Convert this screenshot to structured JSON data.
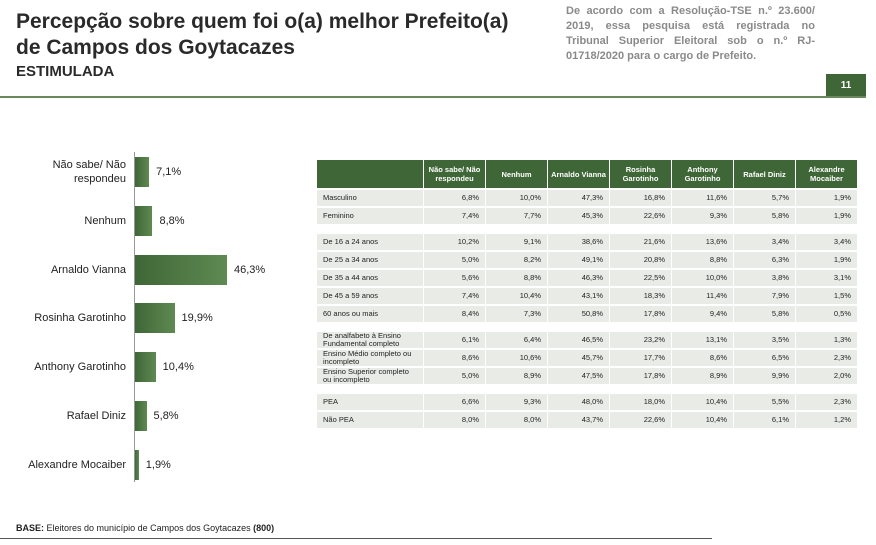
{
  "header": {
    "title_lines": [
      "Percepção sobre quem foi o(a) melhor Prefeito(a)",
      "de Campos dos Goytacazes"
    ],
    "subtitle": "ESTIMULADA",
    "note": "De acordo com a Resolução-TSE n.º 23.600/ 2019, essa pesquisa está registrada no Tribunal Superior Eleitoral sob o n.º RJ-01718/2020 para o cargo de Prefeito.",
    "page_number": "11"
  },
  "chart_data": {
    "type": "bar",
    "orientation": "horizontal",
    "color": "#3f6637",
    "categories": [
      "Não sabe/ Não respondeu",
      "Nenhum",
      "Arnaldo Vianna",
      "Rosinha Garotinho",
      "Anthony Garotinho",
      "Rafael Diniz",
      "Alexandre Mocaiber"
    ],
    "values": [
      7.1,
      8.8,
      46.3,
      19.9,
      10.4,
      5.8,
      1.9
    ],
    "value_labels": [
      "7,1%",
      "8,8%",
      "46,3%",
      "19,9%",
      "10,4%",
      "5,8%",
      "1,9%"
    ]
  },
  "table": {
    "columns": [
      "Não sabe/ Não respondeu",
      "Nenhum",
      "Arnaldo Vianna",
      "Rosinha Garotinho",
      "Anthony Garotinho",
      "Rafael Diniz",
      "Alexandre Mocaiber"
    ],
    "groups": [
      [
        [
          "Masculino",
          "6,8%",
          "10,0%",
          "47,3%",
          "16,8%",
          "11,6%",
          "5,7%",
          "1,9%"
        ],
        [
          "Feminino",
          "7,4%",
          "7,7%",
          "45,3%",
          "22,6%",
          "9,3%",
          "5,8%",
          "1,9%"
        ]
      ],
      [
        [
          "De 16 a 24 anos",
          "10,2%",
          "9,1%",
          "38,6%",
          "21,6%",
          "13,6%",
          "3,4%",
          "3,4%"
        ],
        [
          "De 25 a 34 anos",
          "5,0%",
          "8,2%",
          "49,1%",
          "20,8%",
          "8,8%",
          "6,3%",
          "1,9%"
        ],
        [
          "De 35 a 44 anos",
          "5,6%",
          "8,8%",
          "46,3%",
          "22,5%",
          "10,0%",
          "3,8%",
          "3,1%"
        ],
        [
          "De 45 a 59 anos",
          "7,4%",
          "10,4%",
          "43,1%",
          "18,3%",
          "11,4%",
          "7,9%",
          "1,5%"
        ],
        [
          "60 anos ou mais",
          "8,4%",
          "7,3%",
          "50,8%",
          "17,8%",
          "9,4%",
          "5,8%",
          "0,5%"
        ]
      ],
      [
        [
          "De analfabeto à Ensino Fundamental completo",
          "6,1%",
          "6,4%",
          "46,5%",
          "23,2%",
          "13,1%",
          "3,5%",
          "1,3%"
        ],
        [
          "Ensino Médio completo ou incompleto",
          "8,6%",
          "10,6%",
          "45,7%",
          "17,7%",
          "8,6%",
          "6,5%",
          "2,3%"
        ],
        [
          "Ensino Superior completo ou incompleto",
          "5,0%",
          "8,9%",
          "47,5%",
          "17,8%",
          "8,9%",
          "9,9%",
          "2,0%"
        ]
      ],
      [
        [
          "PEA",
          "6,6%",
          "9,3%",
          "48,0%",
          "18,0%",
          "10,4%",
          "5,5%",
          "2,3%"
        ],
        [
          "Não PEA",
          "8,0%",
          "8,0%",
          "43,7%",
          "22,6%",
          "10,4%",
          "6,1%",
          "1,2%"
        ]
      ]
    ]
  },
  "footer": {
    "label": "BASE:",
    "text": "Eleitores do município de Campos dos Goytacazes",
    "count": "(800)"
  }
}
